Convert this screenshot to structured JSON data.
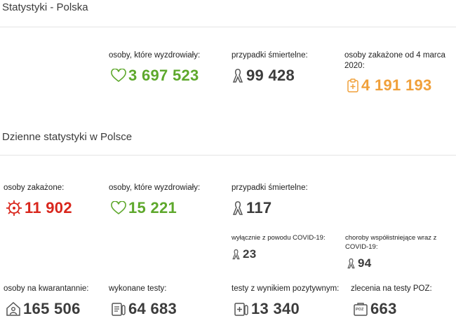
{
  "poland": {
    "title": "Statystyki - Polska",
    "recovered": {
      "label": "osoby, które wyzdrowiały:",
      "value": "3 697 523",
      "icon": "heart-icon"
    },
    "deaths": {
      "label": "przypadki śmiertelne:",
      "value": "99 428",
      "icon": "ribbon-icon"
    },
    "infected": {
      "label": "osoby zakażone od 4 marca 2020:",
      "value": "4 191 193",
      "icon": "clipboard-medical-icon"
    }
  },
  "daily": {
    "title": "Dzienne statystyki w Polsce",
    "infected": {
      "label": "osoby zakażone:",
      "value": "11 902",
      "icon": "virus-icon"
    },
    "recovered": {
      "label": "osoby, które wyzdrowiały:",
      "value": "15 221",
      "icon": "heart-icon"
    },
    "deaths": {
      "label": "przypadki śmiertelne:",
      "value": "117",
      "icon": "ribbon-icon"
    },
    "covid_only": {
      "label": "wyłącznie z powodu COVID-19:",
      "value": "23",
      "icon": "ribbon-icon"
    },
    "comorbid": {
      "label": "choroby współistniejące wraz z COVID-19:",
      "value": "94",
      "icon": "ribbon-icon"
    },
    "quarantine": {
      "label": "osoby na kwarantannie:",
      "value": "165 506",
      "icon": "house-person-icon"
    },
    "tests": {
      "label": "wykonane testy:",
      "value": "64 683",
      "icon": "test-clipboard-icon"
    },
    "positive_tests": {
      "label": "testy z wynikiem pozytywnym:",
      "value": "13 340",
      "icon": "positive-test-icon"
    },
    "poz_orders": {
      "label": "zlecenia na testy POZ:",
      "value": "663",
      "icon": "poz-bag-icon",
      "badge": "POZ"
    }
  },
  "colors": {
    "green": "#5ea82c",
    "orange": "#f0a03a",
    "red": "#d9261c",
    "dark": "#3c3c3c"
  }
}
